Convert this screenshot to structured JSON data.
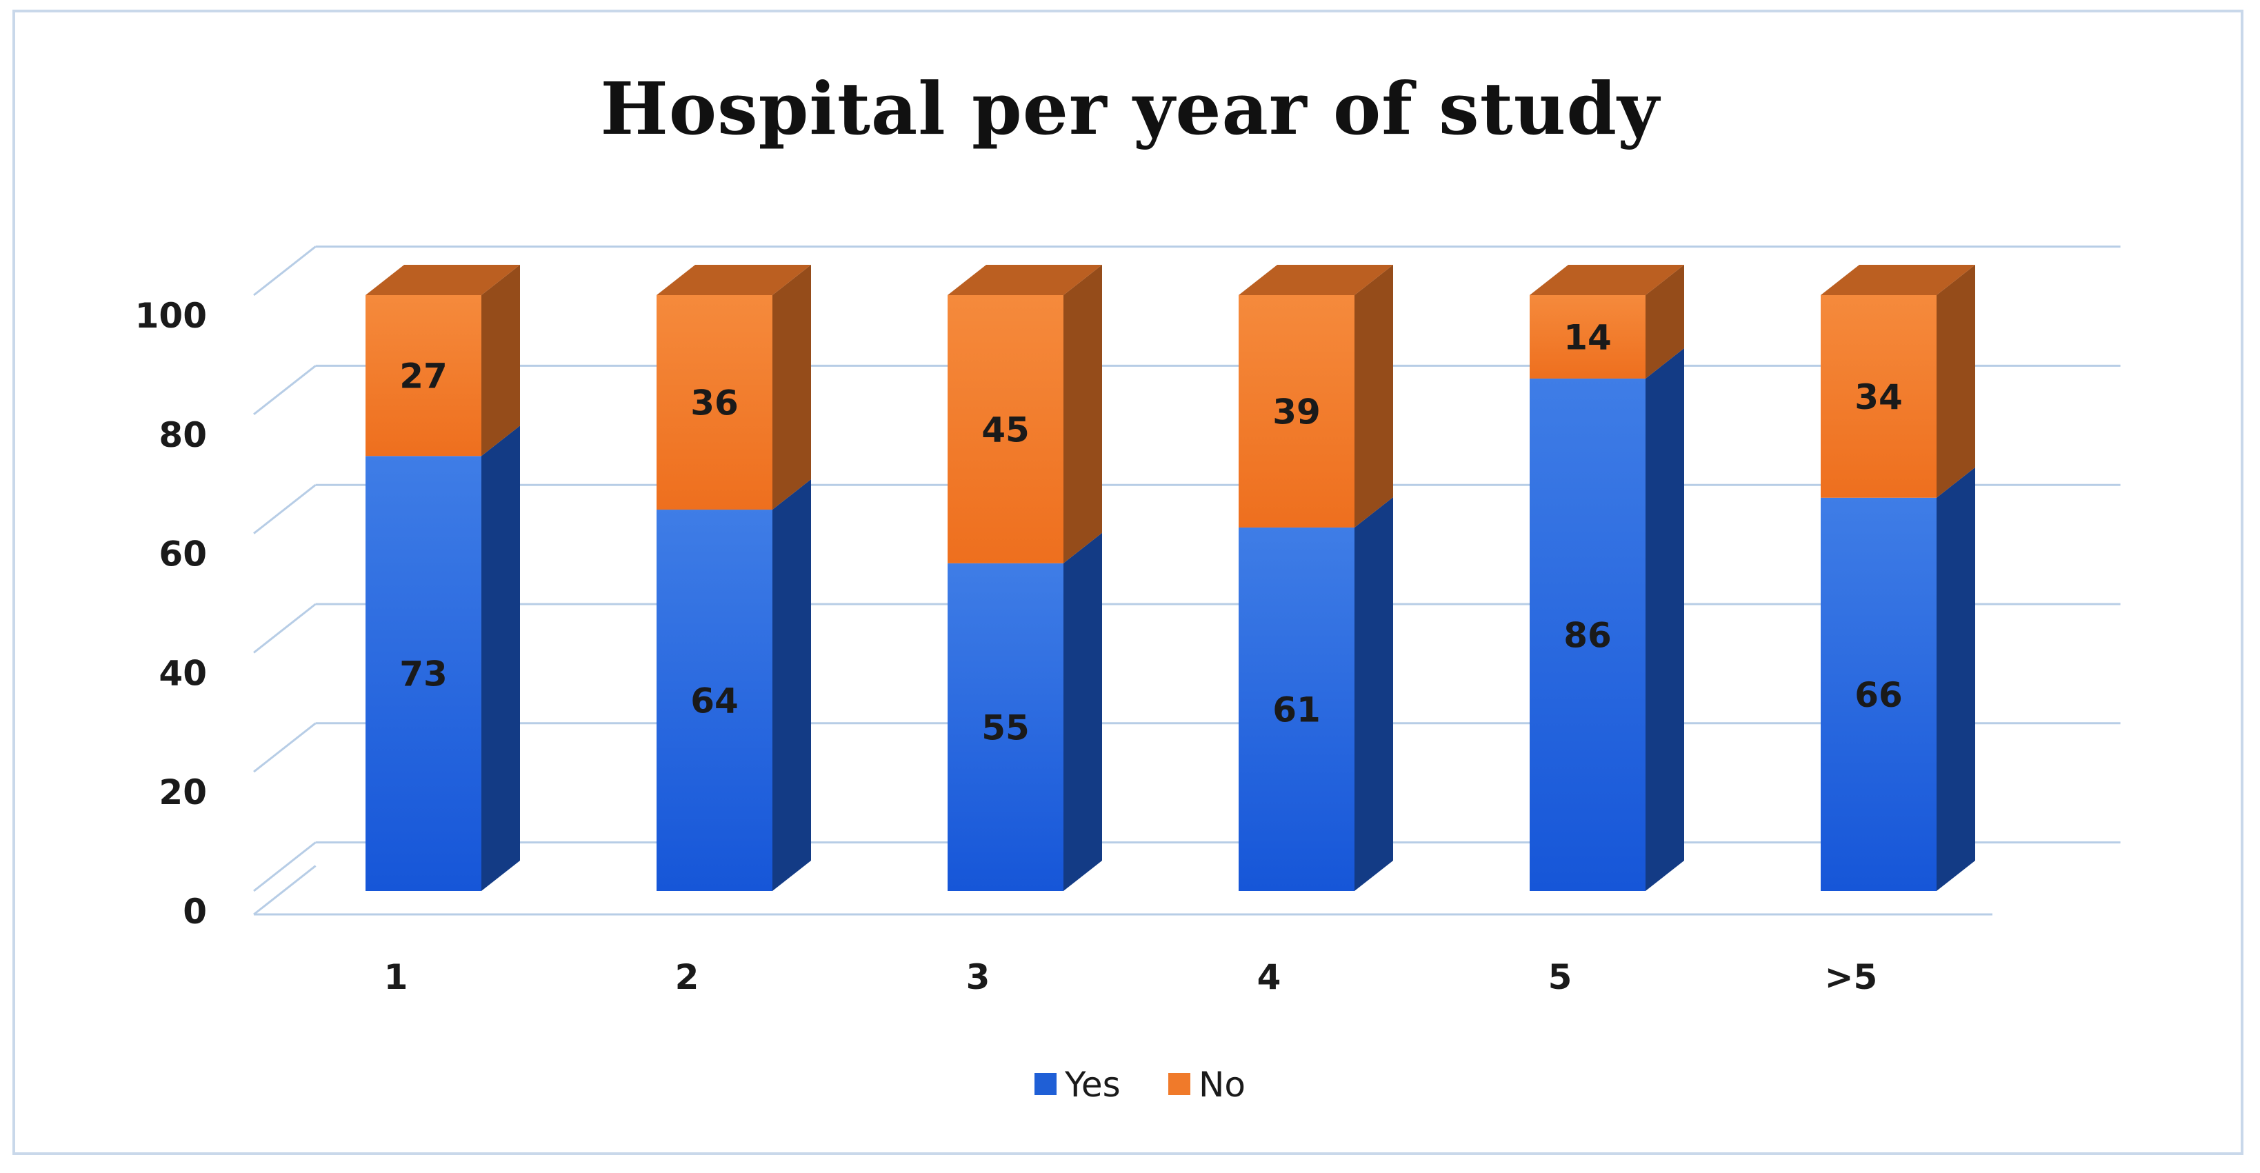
{
  "chart_data": {
    "type": "bar",
    "stacked": true,
    "title": "Hospital per year of study",
    "categories": [
      "1",
      "2",
      "3",
      "4",
      "5",
      ">5"
    ],
    "series": [
      {
        "name": "Yes",
        "values": [
          73,
          64,
          55,
          61,
          86,
          66
        ],
        "color": "#1f5fd6"
      },
      {
        "name": "No",
        "values": [
          27,
          36,
          45,
          39,
          14,
          34
        ],
        "color": "#f07a2a"
      }
    ],
    "yticks": [
      "0",
      "20",
      "40",
      "60",
      "80",
      "100"
    ],
    "ylim": [
      0,
      100
    ],
    "xlabel": "",
    "ylabel": "",
    "grid": true,
    "legend": "bottom"
  }
}
